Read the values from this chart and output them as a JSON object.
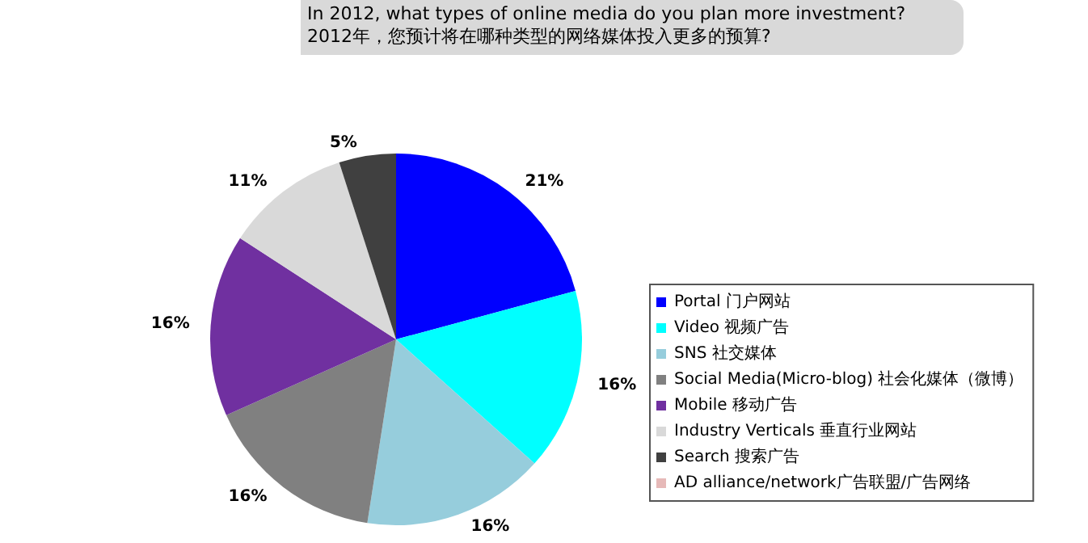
{
  "chart_data": {
    "type": "pie",
    "title": "In 2012, what types of online media do you plan more investment?",
    "subtitle": "2012年，您预计将在哪种类型的网络媒体投入更多的预算?",
    "categories": [
      "Portal 门户网站",
      "Video 视频广告",
      "SNS 社交媒体",
      "Social Media(Micro-blog) 社会化媒体（微博）",
      "Mobile 移动广告",
      "Industry Verticals 垂直行业网站",
      "Search 搜索广告",
      "AD alliance/network广告联盟/广告网络"
    ],
    "values": [
      21,
      16,
      16,
      16,
      16,
      11,
      5,
      0
    ],
    "value_labels": [
      "21%",
      "16%",
      "16%",
      "16%",
      "16%",
      "11%",
      "5%",
      null
    ],
    "colors": [
      "#0000ff",
      "#00ffff",
      "#96cddc",
      "#808080",
      "#7030a0",
      "#d9d9d9",
      "#404040",
      "#e6b9b8"
    ],
    "legend": "right"
  }
}
